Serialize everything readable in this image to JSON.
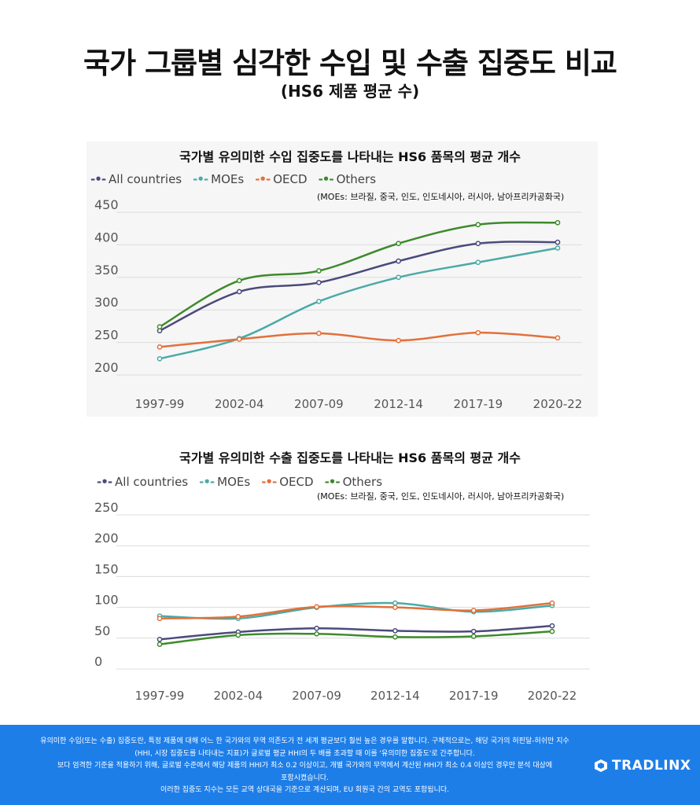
{
  "header": {
    "title": "국가 그룹별 심각한 수입 및 수출 집중도 비교",
    "subtitle": "(HS6 제품 평균 수)"
  },
  "colors": {
    "all_countries": "#4b4a7c",
    "moes": "#4aaaa6",
    "oecd": "#e2703a",
    "others": "#3d8a2c",
    "footer_bg": "#1e7ee8"
  },
  "chart_data": [
    {
      "type": "line",
      "title": "국가별 유의미한 수입 집중도를 나타내는 HS6 품목의 평균 개수",
      "note": "(MOEs: 브라질, 중국, 인도, 인도네시아, 러시아, 남아프리카공화국)",
      "categories": [
        "1997-99",
        "2002-04",
        "2007-09",
        "2012-14",
        "2017-19",
        "2020-22"
      ],
      "yticks": [
        "450",
        "400",
        "350",
        "300",
        "250",
        "200"
      ],
      "ylim": [
        200,
        450
      ],
      "legend_placement": "top-left",
      "grid": true,
      "series": [
        {
          "name": "All countries",
          "key": "all_countries",
          "values": [
            268,
            328,
            342,
            375,
            402,
            404
          ]
        },
        {
          "name": "MOEs",
          "key": "moes",
          "values": [
            225,
            256,
            313,
            350,
            373,
            395
          ]
        },
        {
          "name": "OECD",
          "key": "oecd",
          "values": [
            243,
            255,
            264,
            253,
            265,
            257
          ]
        },
        {
          "name": "Others",
          "key": "others",
          "values": [
            274,
            345,
            360,
            402,
            431,
            434
          ]
        }
      ]
    },
    {
      "type": "line",
      "title": "국가별 유의미한 수출 집중도를 나타내는 HS6 품목의 평균 개수",
      "note": "(MOEs: 브라질, 중국, 인도, 인도네시아, 러시아, 남아프리카공화국)",
      "categories": [
        "1997-99",
        "2002-04",
        "2007-09",
        "2012-14",
        "2017-19",
        "2020-22"
      ],
      "yticks": [
        "250",
        "200",
        "150",
        "100",
        "50",
        "0"
      ],
      "ylim": [
        0,
        250
      ],
      "legend_placement": "top-left",
      "grid": true,
      "series": [
        {
          "name": "All countries",
          "key": "all_countries",
          "values": [
            48,
            60,
            66,
            62,
            61,
            70
          ]
        },
        {
          "name": "MOEs",
          "key": "moes",
          "values": [
            86,
            82,
            100,
            107,
            93,
            103
          ]
        },
        {
          "name": "OECD",
          "key": "oecd",
          "values": [
            82,
            85,
            101,
            100,
            95,
            107
          ]
        },
        {
          "name": "Others",
          "key": "others",
          "values": [
            40,
            55,
            57,
            52,
            53,
            61
          ]
        }
      ]
    }
  ],
  "footer": {
    "lines": [
      "유의미한 수입(또는 수출) 집중도란, 특정 제품에 대해 어느 한 국가와의 무역 의존도가 전 세계 평균보다 훨씬 높은 경우를 말합니다. 구체적으로는, 해당 국가의 허핀달-허쉬만 지수",
      "(HHI, 시장 집중도를 나타내는 지표)가 글로벌 평균 HHI의 두 배를 초과할 때 이를 '유의미한 집중도'로 간주합니다.",
      "보다 엄격한 기준을 적용하기 위해, 글로벌 수준에서 해당 제품의 HHI가 최소 0.2 이상이고, 개별 국가와의 무역에서 계산된 HHI가 최소 0.4 이상인 경우만 분석 대상에",
      "포함시켰습니다.",
      "이러한 집중도 지수는 모든 교역 상대국을 기준으로 계산되며, EU 회원국 간의 교역도 포함됩니다."
    ],
    "brand": "TRADLINX",
    "brand_icon": "tradlinx-logo-icon"
  }
}
